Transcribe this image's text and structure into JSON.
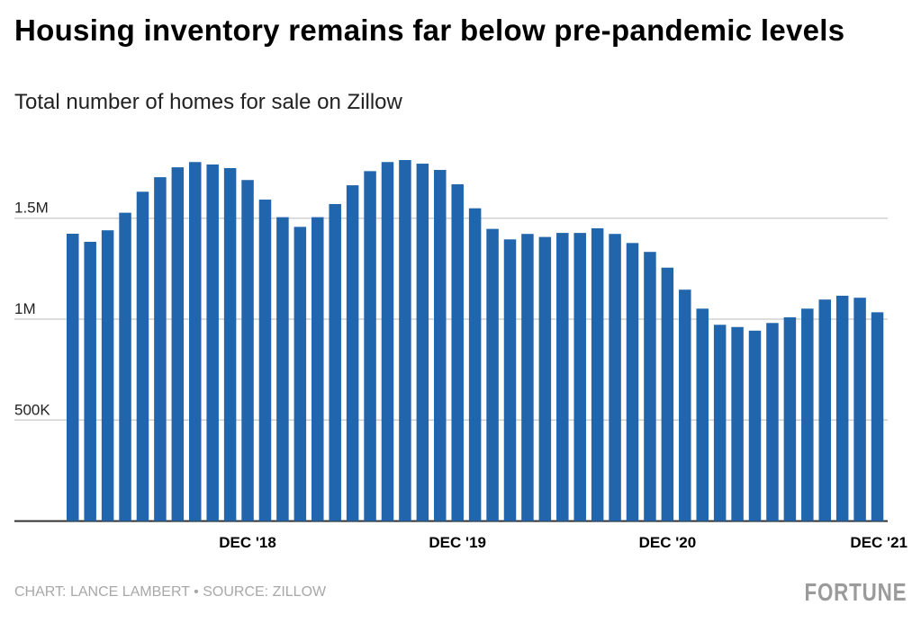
{
  "title": "Housing inventory remains far below pre-pandemic levels",
  "subtitle": "Total number of homes for sale on Zillow",
  "credit": "CHART: LANCE LAMBERT • SOURCE: ZILLOW",
  "logo": "FORTUNE",
  "colors": {
    "bar": "#2166ac",
    "grid": "#d0d0d0",
    "baseline": "#333333"
  },
  "chart_data": {
    "type": "bar",
    "categories": [
      "Feb 2018",
      "Mar 2018",
      "Apr 2018",
      "May 2018",
      "Jun 2018",
      "Jul 2018",
      "Aug 2018",
      "Sep 2018",
      "Oct 2018",
      "Nov 2018",
      "Dec 2018",
      "Jan 2019",
      "Feb 2019",
      "Mar 2019",
      "Apr 2019",
      "May 2019",
      "Jun 2019",
      "Jul 2019",
      "Aug 2019",
      "Sep 2019",
      "Oct 2019",
      "Nov 2019",
      "Dec 2019",
      "Jan 2020",
      "Feb 2020",
      "Mar 2020",
      "Apr 2020",
      "May 2020",
      "Jun 2020",
      "Jul 2020",
      "Aug 2020",
      "Sep 2020",
      "Oct 2020",
      "Nov 2020",
      "Dec 2020",
      "Jan 2021",
      "Feb 2021",
      "Mar 2021",
      "Apr 2021",
      "May 2021",
      "Jun 2021",
      "Jul 2021",
      "Aug 2021",
      "Sep 2021",
      "Oct 2021",
      "Nov 2021",
      "Dec 2021"
    ],
    "values": [
      1423000,
      1383000,
      1440000,
      1527000,
      1631000,
      1703000,
      1752000,
      1778000,
      1766000,
      1748000,
      1689000,
      1592000,
      1505000,
      1457000,
      1505000,
      1570000,
      1663000,
      1733000,
      1778000,
      1788000,
      1770000,
      1739000,
      1668000,
      1549000,
      1447000,
      1395000,
      1422000,
      1407000,
      1427000,
      1427000,
      1450000,
      1422000,
      1377000,
      1333000,
      1255000,
      1146000,
      1052000,
      972000,
      961000,
      943000,
      981000,
      1009000,
      1052000,
      1097000,
      1116000,
      1106000,
      1034000
    ],
    "x_tick_labels": [
      {
        "label": "DEC '18",
        "category": "Dec 2018"
      },
      {
        "label": "DEC '19",
        "category": "Dec 2019"
      },
      {
        "label": "DEC '20",
        "category": "Dec 2020"
      },
      {
        "label": "DEC '21",
        "category": "Dec 2021"
      }
    ],
    "y_ticks": [
      {
        "value": 500000,
        "label": "500K"
      },
      {
        "value": 1000000,
        "label": "1M"
      },
      {
        "value": 1500000,
        "label": "1.5M"
      }
    ],
    "ylim": [
      0,
      1800000
    ],
    "grid": true,
    "legend": "none"
  }
}
